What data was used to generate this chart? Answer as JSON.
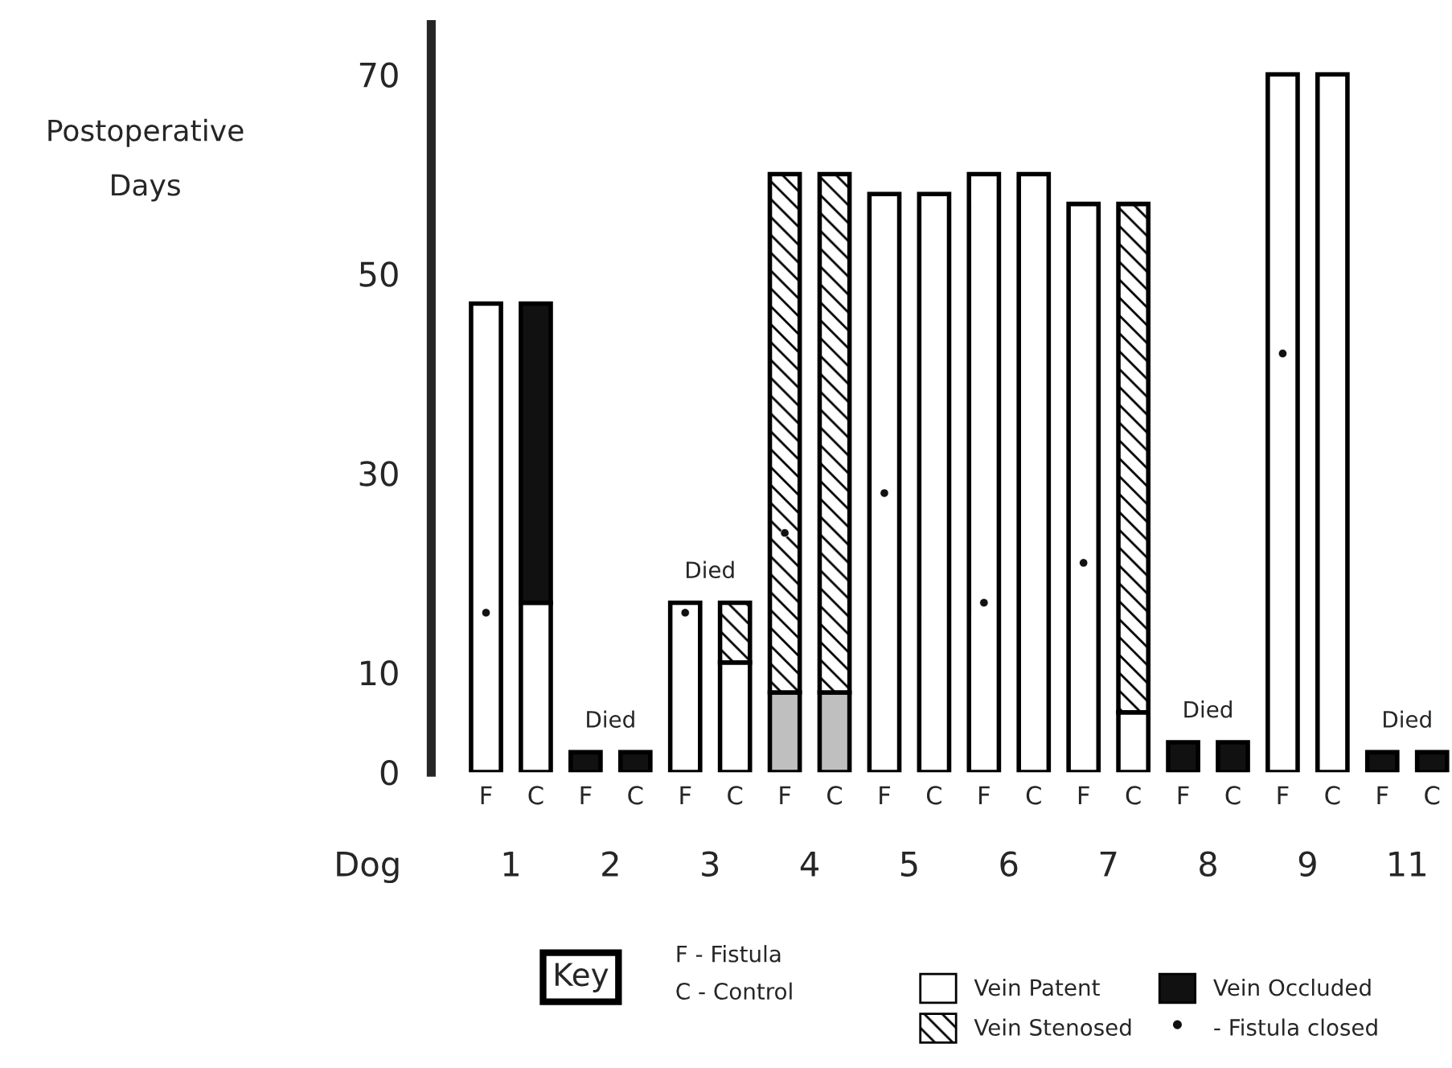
{
  "chart_data": {
    "type": "bar",
    "stacked": true,
    "ylabel": "Postoperative\nDays",
    "xlabel": "Dog",
    "categories": [
      "F",
      "C",
      "F",
      "C",
      "F",
      "C",
      "F",
      "C",
      "F",
      "C",
      "F",
      "C",
      "F",
      "C",
      "F",
      "C",
      "F",
      "C",
      "F",
      "C"
    ],
    "series": [
      {
        "color": "#bfbfbf",
        "values": [
          null,
          null,
          null,
          null,
          null,
          null,
          8,
          8,
          null,
          null,
          null,
          null,
          null,
          null,
          null,
          null,
          null,
          null,
          null,
          null
        ]
      },
      {
        "name": "Vein Patent",
        "color": "#ffffff",
        "values": [
          47,
          17,
          null,
          null,
          17,
          11,
          null,
          null,
          58,
          58,
          60,
          60,
          57,
          6,
          null,
          null,
          70,
          70,
          null,
          null
        ]
      },
      {
        "name": "Vein Stenosed",
        "color": "#000000",
        "values": [
          null,
          null,
          null,
          null,
          null,
          6,
          52,
          52,
          null,
          null,
          null,
          null,
          null,
          51,
          null,
          null,
          null,
          null,
          null,
          null
        ]
      },
      {
        "name": "Vein Occluded",
        "color": "#111111",
        "values": [
          null,
          30,
          2,
          2,
          null,
          null,
          null,
          null,
          null,
          null,
          null,
          null,
          null,
          null,
          3,
          3,
          null,
          null,
          2,
          2
        ]
      },
      {
        "name": "- Fistula closed",
        "type": "scatter",
        "color": "#111111",
        "values": [
          16,
          null,
          null,
          null,
          16,
          null,
          24,
          null,
          28,
          null,
          17,
          null,
          21,
          null,
          null,
          null,
          42,
          null,
          null,
          null
        ]
      }
    ],
    "ylim": [
      0,
      75
    ],
    "yticks": [
      0,
      10,
      30,
      50,
      70
    ],
    "legend": "bottom",
    "marker": "circle",
    "annotations": [
      "Key",
      "F - Fistula",
      "C - Control",
      "1",
      "2",
      "3",
      "4",
      "5",
      "6",
      "7",
      "8",
      "9",
      "11",
      "Died",
      "Died",
      "Died",
      "Died"
    ]
  }
}
